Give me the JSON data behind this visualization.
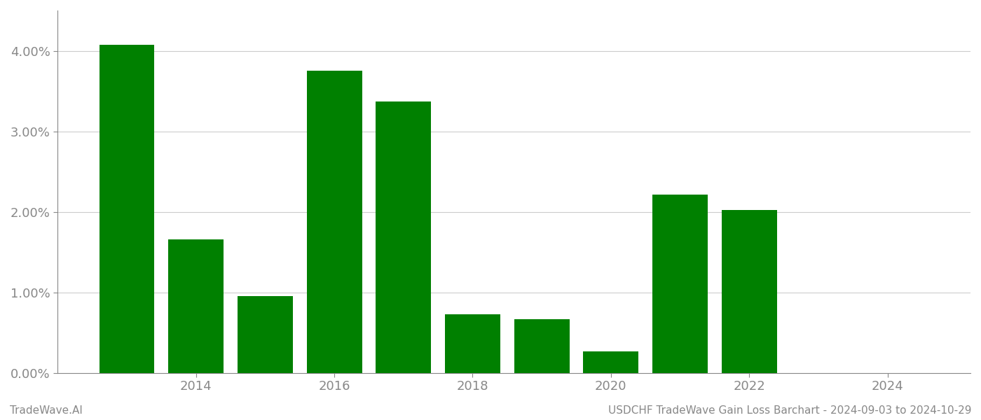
{
  "years": [
    2013,
    2014,
    2015,
    2016,
    2017,
    2018,
    2019,
    2020,
    2021,
    2022,
    2023
  ],
  "values": [
    4.07,
    1.66,
    0.95,
    3.75,
    3.37,
    0.73,
    0.67,
    0.27,
    2.21,
    2.02,
    0.0
  ],
  "bar_color": "#008000",
  "background_color": "#ffffff",
  "grid_color": "#cccccc",
  "axis_color": "#888888",
  "tick_color": "#888888",
  "ylim": [
    0,
    4.5
  ],
  "yticks": [
    0.0,
    1.0,
    2.0,
    3.0,
    4.0
  ],
  "xlim_min": 2012.0,
  "xlim_max": 2025.2,
  "xticks": [
    2014,
    2016,
    2018,
    2020,
    2022,
    2024
  ],
  "footer_left": "TradeWave.AI",
  "footer_right": "USDCHF TradeWave Gain Loss Barchart - 2024-09-03 to 2024-10-29",
  "bar_width": 0.8,
  "tick_fontsize": 13,
  "footer_fontsize": 11
}
